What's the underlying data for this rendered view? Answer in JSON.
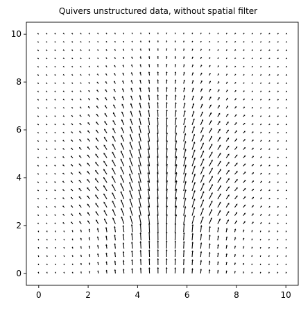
{
  "chart_data": {
    "type": "quiver",
    "title": "Quivers unstructured data, without spatial filter",
    "xlabel": "",
    "ylabel": "",
    "xlim": [
      -0.5,
      10.5
    ],
    "ylim": [
      -0.5,
      10.5
    ],
    "xticks": [
      0,
      2,
      4,
      6,
      8,
      10
    ],
    "yticks": [
      0,
      2,
      4,
      6,
      8,
      10
    ],
    "grid": false,
    "grid_points": {
      "x_start": 0,
      "x_end": 10,
      "y_start": 0,
      "y_end": 10,
      "count_per_axis": 30
    },
    "vector_field": {
      "description": "vertical vectors strongest near x=5, y≈2–4; tilting outward (left side leans to x<5, right side leans to x>5) higher in y, fading to small stubs at the domain edges",
      "center": [
        5,
        3.5
      ],
      "max_magnitude": 1
    },
    "arrow_color": "#000000"
  }
}
